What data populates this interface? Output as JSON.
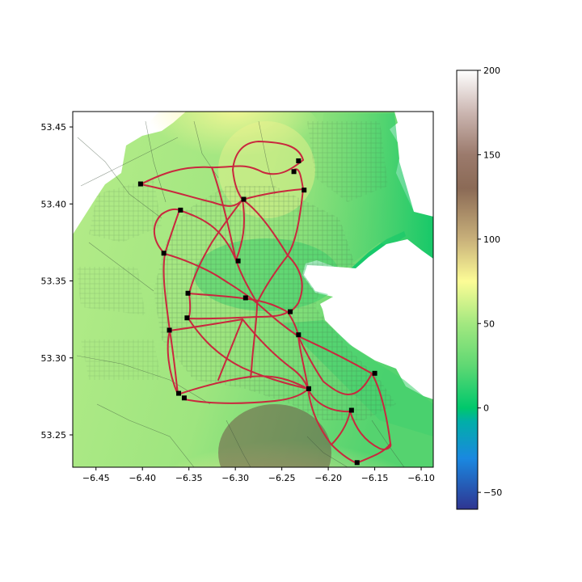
{
  "map": {
    "x_ticks": [
      {
        "value": -6.45,
        "label": "−6.45"
      },
      {
        "value": -6.4,
        "label": "−6.40"
      },
      {
        "value": -6.35,
        "label": "−6.35"
      },
      {
        "value": -6.3,
        "label": "−6.30"
      },
      {
        "value": -6.25,
        "label": "−6.25"
      },
      {
        "value": -6.2,
        "label": "−6.20"
      },
      {
        "value": -6.15,
        "label": "−6.15"
      },
      {
        "value": -6.1,
        "label": "−6.10"
      }
    ],
    "y_ticks": [
      {
        "value": 53.25,
        "label": "53.25"
      },
      {
        "value": 53.3,
        "label": "53.30"
      },
      {
        "value": 53.35,
        "label": "53.35"
      },
      {
        "value": 53.4,
        "label": "53.40"
      },
      {
        "value": 53.45,
        "label": "53.45"
      }
    ],
    "x_range": [
      -6.475,
      -6.087
    ],
    "y_range": [
      53.229,
      53.46
    ],
    "markers": [
      {
        "lon": -6.402,
        "lat": 53.413
      },
      {
        "lon": -6.359,
        "lat": 53.396
      },
      {
        "lon": -6.377,
        "lat": 53.368
      },
      {
        "lon": -6.232,
        "lat": 53.428
      },
      {
        "lon": -6.237,
        "lat": 53.421
      },
      {
        "lon": -6.226,
        "lat": 53.409
      },
      {
        "lon": -6.291,
        "lat": 53.403
      },
      {
        "lon": -6.297,
        "lat": 53.363
      },
      {
        "lon": -6.351,
        "lat": 53.342
      },
      {
        "lon": -6.289,
        "lat": 53.339
      },
      {
        "lon": -6.241,
        "lat": 53.33
      },
      {
        "lon": -6.352,
        "lat": 53.326
      },
      {
        "lon": -6.371,
        "lat": 53.318
      },
      {
        "lon": -6.232,
        "lat": 53.315
      },
      {
        "lon": -6.15,
        "lat": 53.29
      },
      {
        "lon": -6.221,
        "lat": 53.28
      },
      {
        "lon": -6.361,
        "lat": 53.277
      },
      {
        "lon": -6.355,
        "lat": 53.274
      },
      {
        "lon": -6.175,
        "lat": 53.266
      },
      {
        "lon": -6.169,
        "lat": 53.232
      }
    ]
  },
  "colorbar": {
    "vmin": -60,
    "vmax": 200,
    "ticks": [
      {
        "value": 200,
        "label": "200"
      },
      {
        "value": 150,
        "label": "150"
      },
      {
        "value": 100,
        "label": "100"
      },
      {
        "value": 50,
        "label": "50"
      },
      {
        "value": 0,
        "label": "0"
      },
      {
        "value": -50,
        "label": "−50"
      }
    ],
    "stops": [
      {
        "value": -60,
        "color": "#2f3591"
      },
      {
        "value": -30,
        "color": "#1a88e0"
      },
      {
        "value": -8,
        "color": "#01aea8"
      },
      {
        "value": 0,
        "color": "#00c86c"
      },
      {
        "value": 25,
        "color": "#5fd873"
      },
      {
        "value": 50,
        "color": "#a3e880"
      },
      {
        "value": 75,
        "color": "#fcfc96"
      },
      {
        "value": 100,
        "color": "#c8b07a"
      },
      {
        "value": 130,
        "color": "#8b6a56"
      },
      {
        "value": 150,
        "color": "#9b7a6c"
      },
      {
        "value": 175,
        "color": "#cbb6b1"
      },
      {
        "value": 200,
        "color": "#ffffff"
      }
    ]
  },
  "colors": {
    "route": "#c9283e",
    "marker": "#000000",
    "water": "#ffffff"
  }
}
